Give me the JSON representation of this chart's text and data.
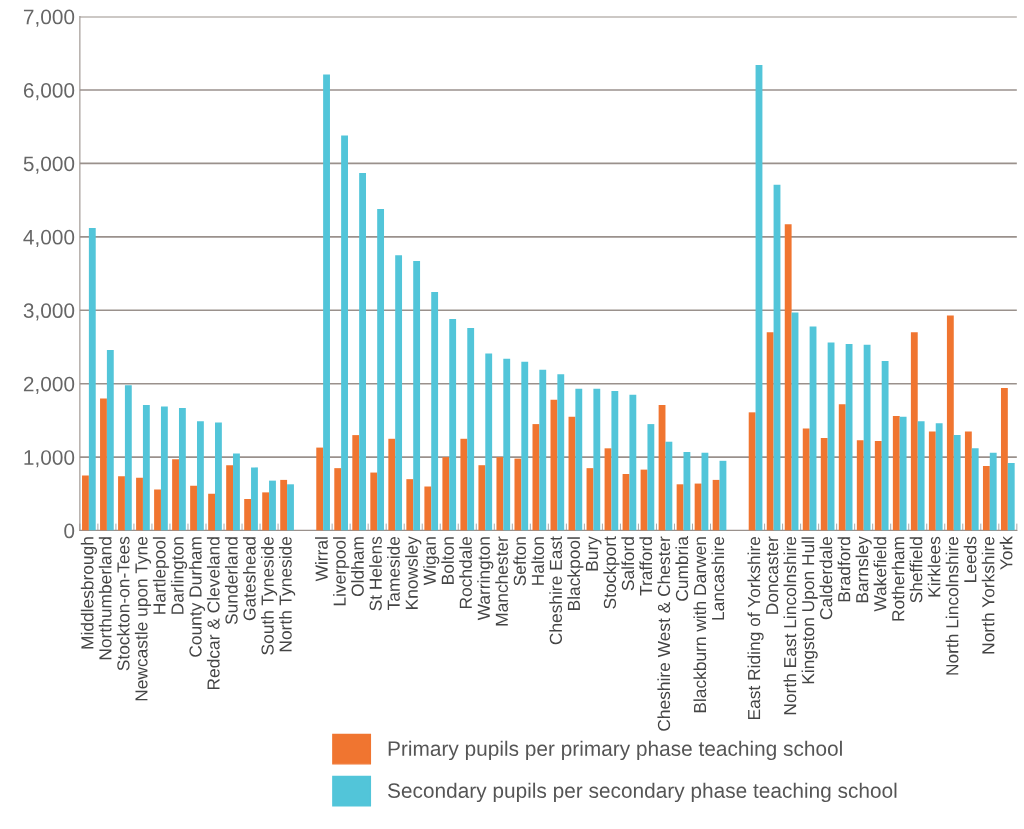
{
  "chart_data": {
    "type": "bar",
    "categories": [
      "Middlesbrough",
      "Northumberland",
      "Stockton-on-Tees",
      "Newcastle upon Tyne",
      "Hartlepool",
      "Darlington",
      "County Durham",
      "Redcar & Cleveland",
      "Sunderland",
      "Gateshead",
      "South Tyneside",
      "North Tyneside",
      null,
      "Wirral",
      "Liverpool",
      "Oldham",
      "St Helens",
      "Tameside",
      "Knowsley",
      "Wigan",
      "Bolton",
      "Rochdale",
      "Warrington",
      "Manchester",
      "Sefton",
      "Halton",
      "Cheshire East",
      "Blackpool",
      "Bury",
      "Stockport",
      "Salford",
      "Trafford",
      "Cheshire West & Chester",
      "Cumbria",
      "Blackburn with Darwen",
      "Lancashire",
      null,
      "East Riding of Yorkshire",
      "Doncaster",
      "North East Lincolnshire",
      "Kingston Upon Hull",
      "Calderdale",
      "Bradford",
      "Barnsley",
      "Wakefield",
      "Rotherham",
      "Sheffield",
      "Kirklees",
      "North Lincolnshire",
      "Leeds",
      "North Yorkshire",
      "York"
    ],
    "series": [
      {
        "name": "Primary pupils per primary phase teaching school",
        "color": "#f07530",
        "values": [
          750,
          1800,
          740,
          720,
          560,
          970,
          610,
          500,
          890,
          430,
          520,
          690,
          null,
          1130,
          850,
          1300,
          790,
          1250,
          700,
          600,
          1000,
          1250,
          890,
          1000,
          980,
          1450,
          1780,
          1550,
          850,
          1120,
          770,
          830,
          1710,
          630,
          640,
          690,
          null,
          1610,
          2700,
          4170,
          1390,
          1260,
          1720,
          1230,
          1220,
          1560,
          2700,
          1350,
          2930,
          1350,
          880,
          1940
        ]
      },
      {
        "name": "Secondary pupils per secondary phase teaching school",
        "color": "#52c5d9",
        "values": [
          4120,
          2460,
          1980,
          1710,
          1690,
          1670,
          1490,
          1470,
          1050,
          860,
          680,
          630,
          null,
          6210,
          5380,
          4870,
          4380,
          3750,
          3670,
          3250,
          2880,
          2760,
          2410,
          2340,
          2300,
          2190,
          2130,
          1930,
          1930,
          1900,
          1850,
          1450,
          1210,
          1070,
          1060,
          950,
          null,
          6340,
          4710,
          2970,
          2780,
          2560,
          2540,
          2530,
          2310,
          1550,
          1490,
          1460,
          1300,
          1120,
          1060,
          920
        ]
      }
    ],
    "ylim": [
      0,
      7000
    ],
    "yticks": [
      0,
      {
        "value": 1000,
        "label": "1,000"
      },
      {
        "value": 2000,
        "label": "2,000"
      },
      {
        "value": 3000,
        "label": "3,000"
      },
      {
        "value": 4000,
        "label": "4,000"
      },
      {
        "value": 5000,
        "label": "5,000"
      },
      {
        "value": 6000,
        "label": "6,000"
      },
      {
        "value": 7000,
        "label": "7,000"
      }
    ],
    "grid": "y",
    "legend": "bottom"
  }
}
